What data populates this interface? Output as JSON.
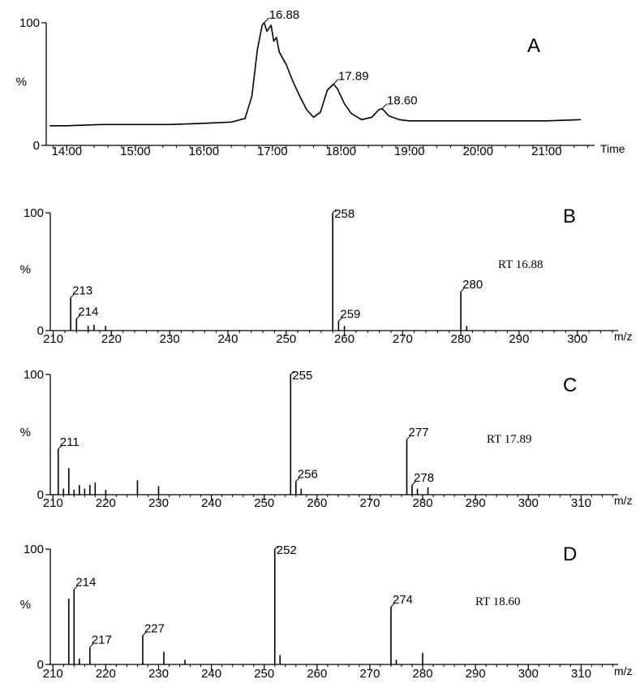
{
  "chart_data": [
    {
      "panel": "A",
      "type": "line",
      "xlabel": "Time",
      "ylabel": "%",
      "xlim": [
        13.7,
        21.7
      ],
      "ylim": [
        0,
        100
      ],
      "xticks": [
        14.0,
        15.0,
        16.0,
        17.0,
        18.0,
        19.0,
        20.0,
        21.0
      ],
      "xtick_labels": [
        "14.00",
        "15.00",
        "16.00",
        "17.00",
        "18.00",
        "19.00",
        "20.00",
        "21.00"
      ],
      "yticks": [
        0,
        100
      ],
      "ytick_labels": [
        "0",
        "100"
      ],
      "series": [
        {
          "x": [
            13.75,
            14.0,
            14.5,
            15.0,
            15.5,
            16.0,
            16.4,
            16.6,
            16.7,
            16.78,
            16.85,
            16.88,
            16.92,
            16.98,
            17.02,
            17.06,
            17.1,
            17.2,
            17.3,
            17.4,
            17.5,
            17.6,
            17.7,
            17.8,
            17.89,
            17.95,
            18.05,
            18.15,
            18.3,
            18.45,
            18.55,
            18.6,
            18.7,
            18.85,
            19.0,
            19.5,
            20.0,
            20.5,
            21.0,
            21.5
          ],
          "y": [
            16,
            16,
            17,
            17,
            17,
            18,
            19,
            22,
            40,
            78,
            98,
            100,
            93,
            98,
            85,
            88,
            76,
            66,
            52,
            40,
            29,
            23,
            27,
            45,
            50,
            46,
            34,
            26,
            21,
            23,
            29,
            30,
            24,
            21,
            20,
            20,
            20,
            20,
            20,
            21
          ]
        }
      ],
      "peak_labels": [
        {
          "x": 16.88,
          "y": 100,
          "text": "16.88"
        },
        {
          "x": 17.89,
          "y": 50,
          "text": "17.89"
        },
        {
          "x": 18.6,
          "y": 30,
          "text": "18.60"
        }
      ]
    },
    {
      "panel": "B",
      "type": "bar",
      "xlabel": "m/z",
      "ylabel": "%",
      "annotation": "RT 16.88",
      "xlim": [
        209.5,
        307
      ],
      "ylim": [
        0,
        100
      ],
      "xticks": [
        210,
        220,
        230,
        240,
        250,
        260,
        270,
        280,
        290,
        300
      ],
      "yticks": [
        0,
        100
      ],
      "ytick_labels": [
        "0",
        "100"
      ],
      "peaks": [
        {
          "mz": 213,
          "value": 28
        },
        {
          "mz": 214,
          "value": 10
        },
        {
          "mz": 216,
          "value": 4
        },
        {
          "mz": 217,
          "value": 5
        },
        {
          "mz": 219,
          "value": 4
        },
        {
          "mz": 258,
          "value": 100
        },
        {
          "mz": 259,
          "value": 8
        },
        {
          "mz": 260,
          "value": 4
        },
        {
          "mz": 280,
          "value": 33
        },
        {
          "mz": 281,
          "value": 4
        }
      ],
      "peak_labels": [
        {
          "mz": 213,
          "text": "213"
        },
        {
          "mz": 214,
          "text": "214"
        },
        {
          "mz": 258,
          "text": "258"
        },
        {
          "mz": 259,
          "text": "259"
        },
        {
          "mz": 280,
          "text": "280"
        }
      ]
    },
    {
      "panel": "C",
      "type": "bar",
      "xlabel": "m/z",
      "ylabel": "%",
      "annotation": "RT 17.89",
      "xlim": [
        209.5,
        317
      ],
      "ylim": [
        0,
        100
      ],
      "xticks": [
        210,
        220,
        230,
        240,
        250,
        260,
        270,
        280,
        290,
        300,
        310
      ],
      "yticks": [
        0,
        100
      ],
      "ytick_labels": [
        "0",
        "100"
      ],
      "peaks": [
        {
          "mz": 211,
          "value": 38
        },
        {
          "mz": 212,
          "value": 5
        },
        {
          "mz": 213,
          "value": 22
        },
        {
          "mz": 214,
          "value": 4
        },
        {
          "mz": 215,
          "value": 8
        },
        {
          "mz": 216,
          "value": 5
        },
        {
          "mz": 217,
          "value": 8
        },
        {
          "mz": 218,
          "value": 10
        },
        {
          "mz": 220,
          "value": 4
        },
        {
          "mz": 226,
          "value": 12
        },
        {
          "mz": 230,
          "value": 7
        },
        {
          "mz": 255,
          "value": 100
        },
        {
          "mz": 256,
          "value": 11
        },
        {
          "mz": 257,
          "value": 5
        },
        {
          "mz": 277,
          "value": 46
        },
        {
          "mz": 278,
          "value": 8
        },
        {
          "mz": 279,
          "value": 5
        },
        {
          "mz": 281,
          "value": 6
        }
      ],
      "peak_labels": [
        {
          "mz": 211,
          "text": "211"
        },
        {
          "mz": 255,
          "text": "255"
        },
        {
          "mz": 256,
          "text": "256"
        },
        {
          "mz": 277,
          "text": "277"
        },
        {
          "mz": 278,
          "text": "278"
        }
      ]
    },
    {
      "panel": "D",
      "type": "bar",
      "xlabel": "m/z",
      "ylabel": "%",
      "annotation": "RT 18.60",
      "xlim": [
        209.5,
        317
      ],
      "ylim": [
        0,
        100
      ],
      "xticks": [
        210,
        220,
        230,
        240,
        250,
        260,
        270,
        280,
        290,
        300,
        310
      ],
      "yticks": [
        0,
        100
      ],
      "ytick_labels": [
        "0",
        "100"
      ],
      "peaks": [
        {
          "mz": 213,
          "value": 57
        },
        {
          "mz": 214,
          "value": 65
        },
        {
          "mz": 215,
          "value": 5
        },
        {
          "mz": 217,
          "value": 15
        },
        {
          "mz": 227,
          "value": 25
        },
        {
          "mz": 231,
          "value": 11
        },
        {
          "mz": 235,
          "value": 4
        },
        {
          "mz": 252,
          "value": 100
        },
        {
          "mz": 253,
          "value": 8
        },
        {
          "mz": 274,
          "value": 50
        },
        {
          "mz": 275,
          "value": 4
        },
        {
          "mz": 280,
          "value": 10
        }
      ],
      "peak_labels": [
        {
          "mz": 214,
          "text": "214"
        },
        {
          "mz": 217,
          "text": "217"
        },
        {
          "mz": 227,
          "text": "227"
        },
        {
          "mz": 252,
          "text": "252"
        },
        {
          "mz": 274,
          "text": "274"
        }
      ]
    }
  ]
}
